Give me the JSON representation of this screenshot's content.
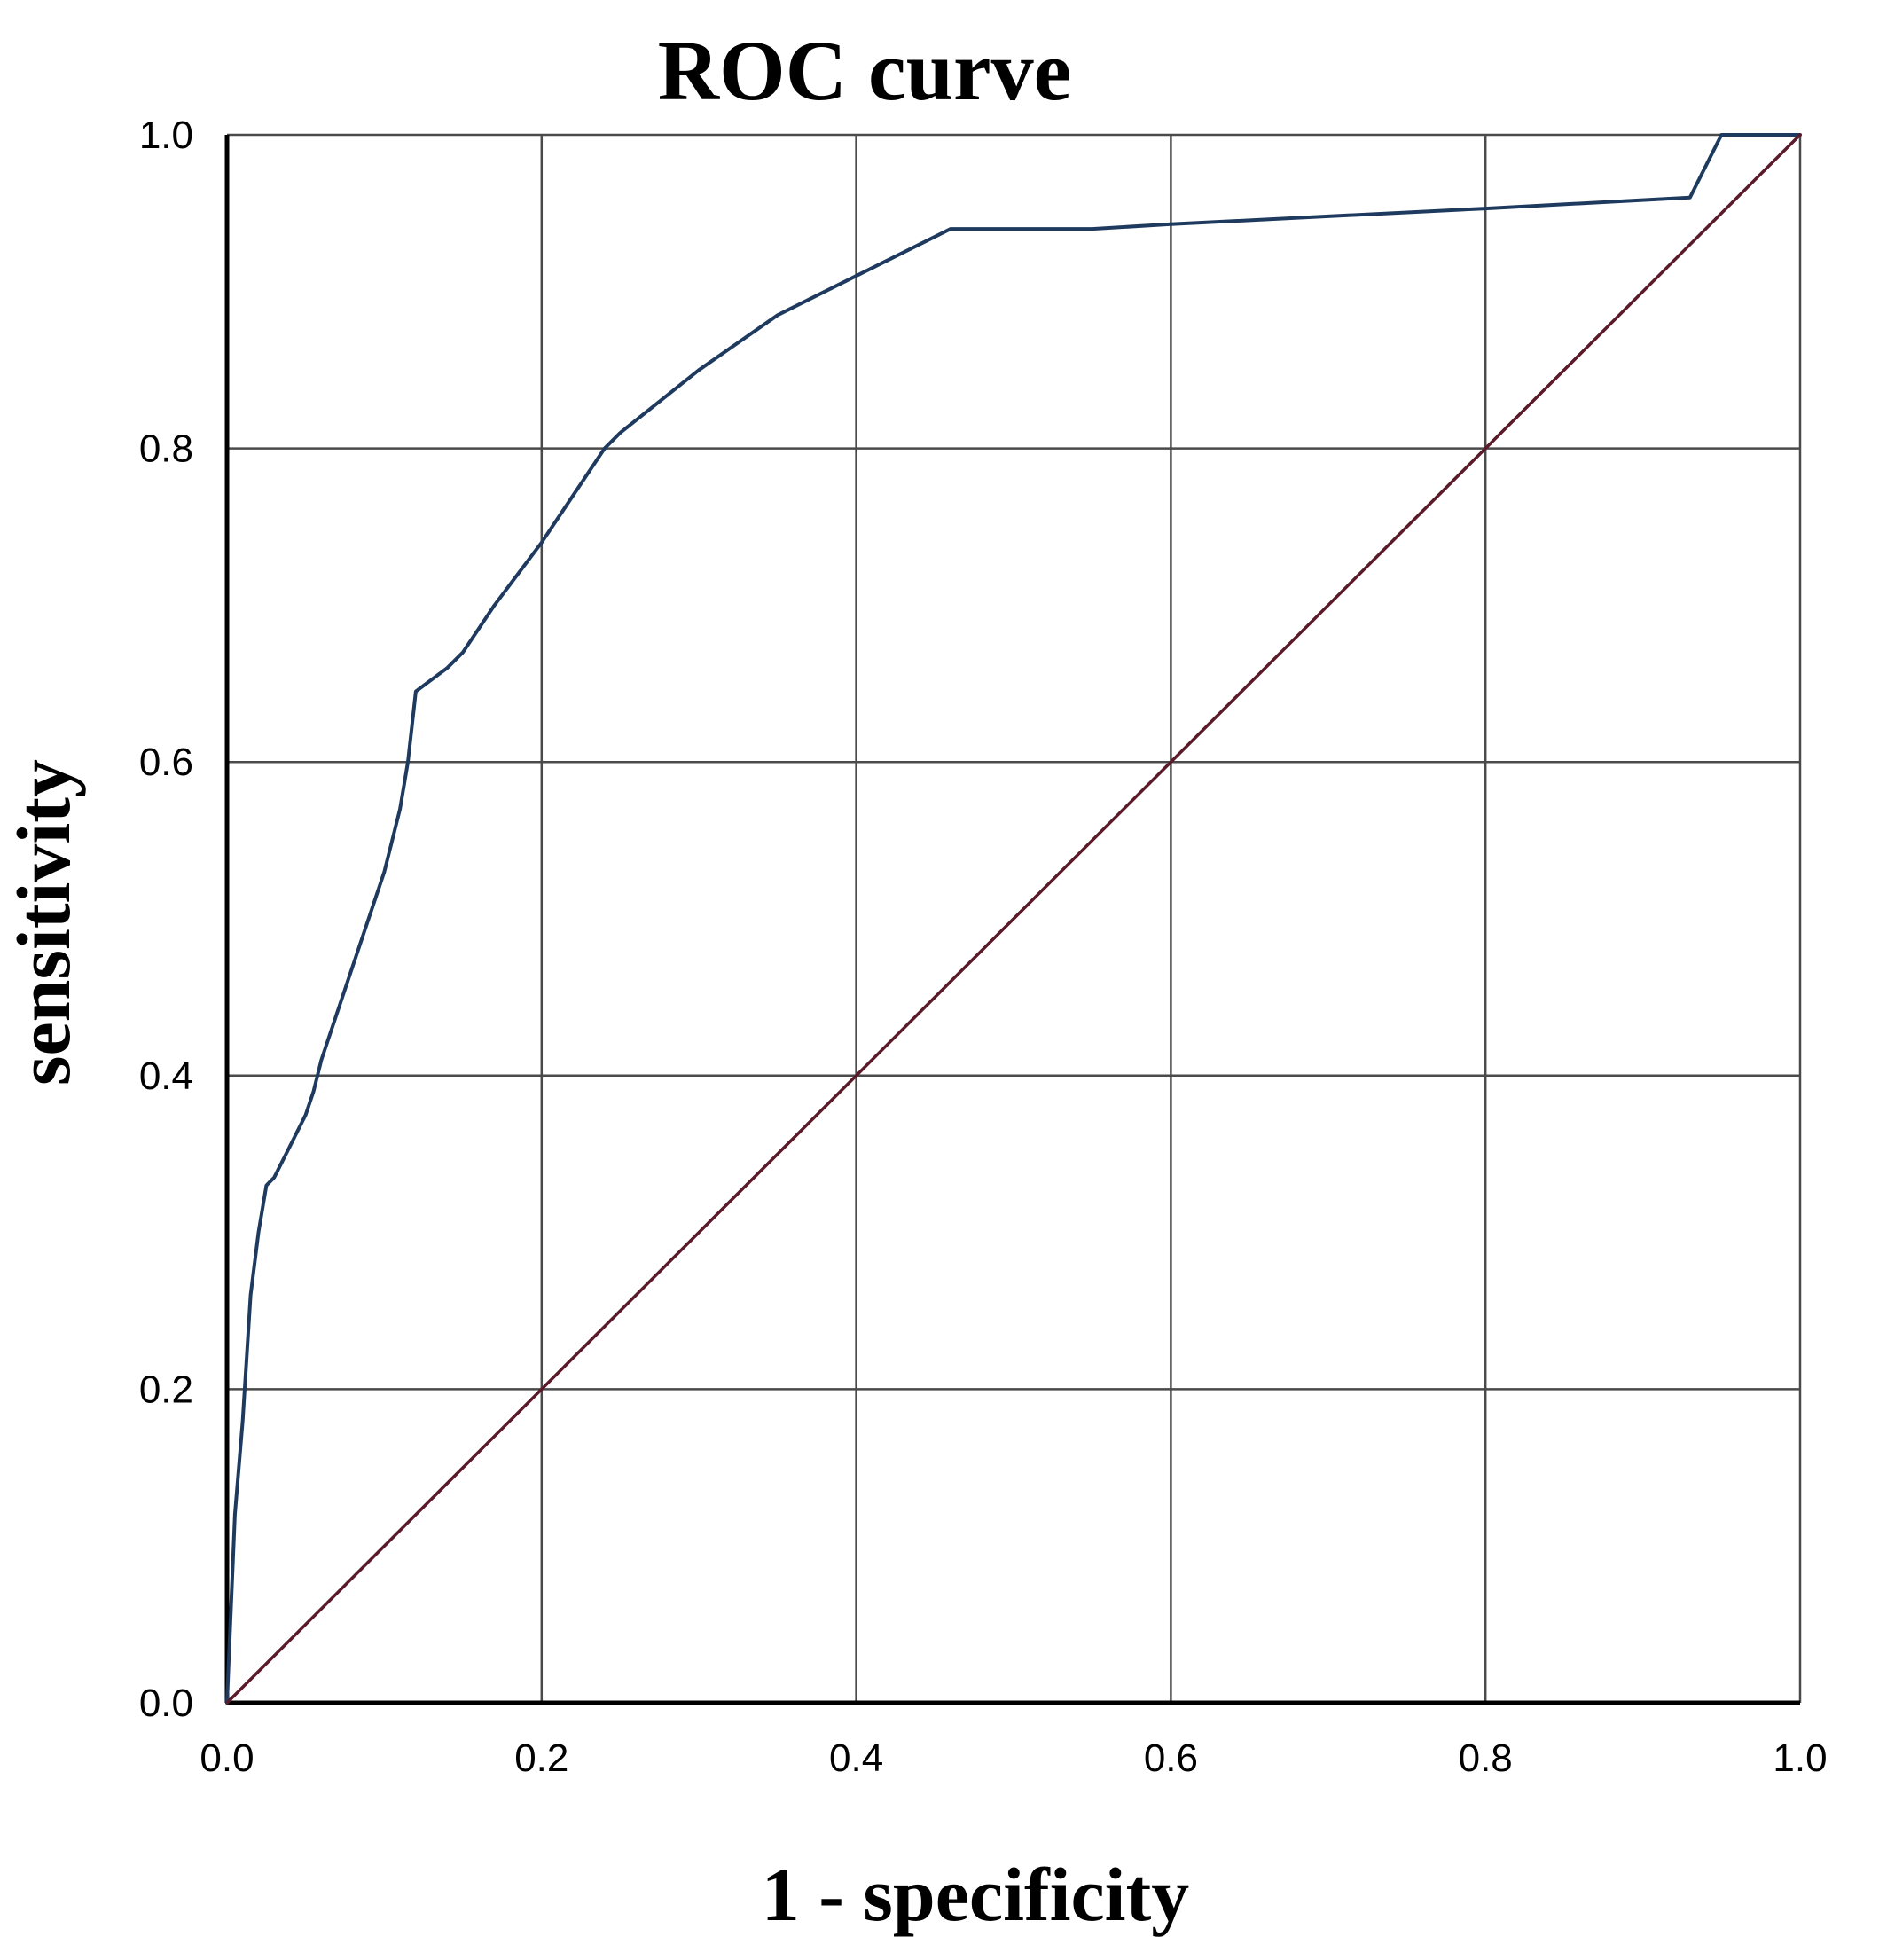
{
  "chart_data": {
    "type": "line",
    "title": "ROC curve",
    "xlabel": "1 - specificity",
    "ylabel": "sensitivity",
    "xlim": [
      0,
      1
    ],
    "ylim": [
      0,
      1
    ],
    "grid": true,
    "x_ticks": [
      "0.0",
      "0.2",
      "0.4",
      "0.6",
      "0.8",
      "1.0"
    ],
    "y_ticks": [
      "0.0",
      "0.2",
      "0.4",
      "0.6",
      "0.8",
      "1.0"
    ],
    "series": [
      {
        "color": "#1f3a5f",
        "x": [
          0.0,
          0.005,
          0.01,
          0.015,
          0.02,
          0.025,
          0.03,
          0.04,
          0.05,
          0.055,
          0.06,
          0.08,
          0.1,
          0.11,
          0.115,
          0.12,
          0.14,
          0.15,
          0.17,
          0.2,
          0.22,
          0.24,
          0.25,
          0.3,
          0.35,
          0.4,
          0.46,
          0.55,
          0.6,
          0.7,
          0.8,
          0.93,
          0.95,
          1.0
        ],
        "y": [
          0.0,
          0.12,
          0.18,
          0.26,
          0.3,
          0.33,
          0.335,
          0.355,
          0.375,
          0.39,
          0.41,
          0.47,
          0.53,
          0.57,
          0.6,
          0.645,
          0.66,
          0.67,
          0.7,
          0.74,
          0.77,
          0.8,
          0.81,
          0.85,
          0.885,
          0.91,
          0.94,
          0.94,
          0.943,
          0.948,
          0.953,
          0.96,
          1.0,
          1.0
        ]
      },
      {
        "color": "#5a1a2a",
        "x": [
          0.0,
          1.0
        ],
        "y": [
          0.0,
          1.0
        ]
      }
    ]
  }
}
